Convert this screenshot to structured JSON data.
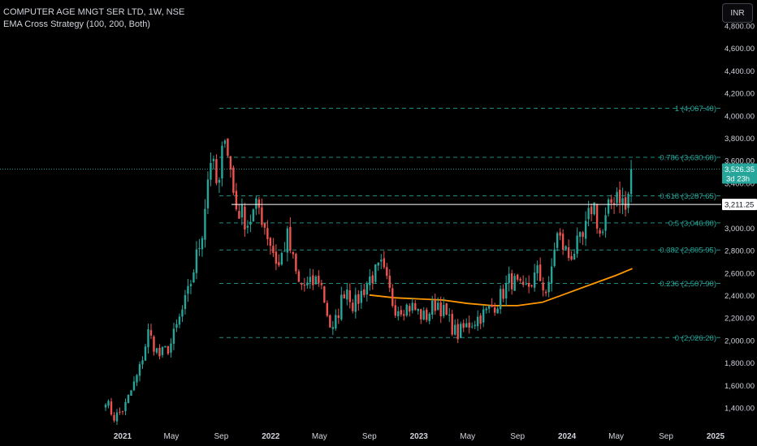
{
  "header": {
    "title": "COMPUTER AGE MNGT SER LTD, 1W, NSE",
    "strategy": "EMA Cross Strategy (100, 200, Both)"
  },
  "currency_button": {
    "label": "INR"
  },
  "colors": {
    "up": "#26a69a",
    "down": "#ef5350",
    "fib": "#26a69a",
    "ema": "#ff9800",
    "axis_text": "#d1d4dc",
    "reference_line": "#ffffff",
    "last_price_badge": "#26a69a"
  },
  "chart_data": {
    "type": "candlestick",
    "y_axis": {
      "ylim": [
        1260,
        4900
      ],
      "ticks": [
        "1,400.00",
        "1,600.00",
        "1,800.00",
        "2,000.00",
        "2,200.00",
        "2,400.00",
        "2,600.00",
        "2,800.00",
        "3,000.00",
        "3,200.00",
        "3,400.00",
        "3,600.00",
        "3,800.00",
        "4,000.00",
        "4,200.00",
        "4,400.00",
        "4,600.00",
        "4,800.00"
      ],
      "tick_values": [
        1400,
        1600,
        1800,
        2000,
        2200,
        2400,
        2600,
        2800,
        3000,
        3200,
        3400,
        3600,
        3800,
        4000,
        4200,
        4400,
        4600,
        4800
      ]
    },
    "x_axis": {
      "tick_labels": [
        "2021",
        "May",
        "Sep",
        "2022",
        "May",
        "Sep",
        "2023",
        "May",
        "Sep",
        "2024",
        "May",
        "Sep",
        "2025"
      ],
      "tick_dates": [
        "2021-01-01",
        "2021-05-01",
        "2021-09-01",
        "2022-01-01",
        "2022-05-01",
        "2022-09-01",
        "2023-01-01",
        "2023-05-01",
        "2023-09-01",
        "2024-01-01",
        "2024-05-01",
        "2024-09-01",
        "2025-01-01"
      ]
    },
    "fib_levels": [
      {
        "label": "1 (4,067.40)",
        "value": 4067.4
      },
      {
        "label": "0.786 (3,630.60)",
        "value": 3630.6
      },
      {
        "label": "0.618 (3,287.65)",
        "value": 3287.65
      },
      {
        "label": "0.5 (3,046.80)",
        "value": 3046.8
      },
      {
        "label": "0.382 (2,805.95)",
        "value": 2805.95
      },
      {
        "label": "0.236 (2,507.90)",
        "value": 2507.9
      },
      {
        "label": "0 (2,026.20)",
        "value": 2026.2
      }
    ],
    "last_price": {
      "value": 3526.35,
      "label": "3,526.35",
      "countdown": "3d 23h"
    },
    "reference_level": {
      "value": 3211.25,
      "label": "3,211.25"
    },
    "anchor_points": [
      {
        "date": "2020-11-20",
        "close": 1480
      },
      {
        "date": "2020-12-10",
        "close": 1310
      },
      {
        "date": "2021-01-05",
        "close": 1400
      },
      {
        "date": "2021-02-10",
        "close": 1720
      },
      {
        "date": "2021-03-05",
        "close": 2070
      },
      {
        "date": "2021-04-01",
        "close": 1860
      },
      {
        "date": "2021-04-28",
        "close": 1950
      },
      {
        "date": "2021-06-10",
        "close": 2400
      },
      {
        "date": "2021-07-15",
        "close": 2950
      },
      {
        "date": "2021-08-05",
        "close": 3650
      },
      {
        "date": "2021-08-25",
        "close": 3300
      },
      {
        "date": "2021-09-10",
        "close": 3900
      },
      {
        "date": "2021-10-05",
        "close": 3200
      },
      {
        "date": "2021-11-05",
        "close": 3050
      },
      {
        "date": "2021-12-01",
        "close": 3200
      },
      {
        "date": "2022-01-20",
        "close": 2650
      },
      {
        "date": "2022-02-10",
        "close": 2930
      },
      {
        "date": "2022-03-10",
        "close": 2500
      },
      {
        "date": "2022-04-05",
        "close": 2480
      },
      {
        "date": "2022-05-01",
        "close": 2560
      },
      {
        "date": "2022-06-01",
        "close": 2050
      },
      {
        "date": "2022-07-05",
        "close": 2500
      },
      {
        "date": "2022-07-25",
        "close": 2300
      },
      {
        "date": "2022-09-01",
        "close": 2550
      },
      {
        "date": "2022-10-01",
        "close": 2650
      },
      {
        "date": "2022-11-01",
        "close": 2300
      },
      {
        "date": "2022-12-15",
        "close": 2300
      },
      {
        "date": "2023-01-15",
        "close": 2200
      },
      {
        "date": "2023-02-15",
        "close": 2350
      },
      {
        "date": "2023-04-05",
        "close": 2050
      },
      {
        "date": "2023-05-05",
        "close": 2150
      },
      {
        "date": "2023-06-15",
        "close": 2250
      },
      {
        "date": "2023-07-15",
        "close": 2350
      },
      {
        "date": "2023-08-15",
        "close": 2550
      },
      {
        "date": "2023-09-15",
        "close": 2420
      },
      {
        "date": "2023-10-20",
        "close": 2600
      },
      {
        "date": "2023-11-15",
        "close": 2400
      },
      {
        "date": "2023-12-05",
        "close": 2950
      },
      {
        "date": "2024-01-05",
        "close": 2750
      },
      {
        "date": "2024-02-10",
        "close": 2900
      },
      {
        "date": "2024-03-05",
        "close": 3250
      },
      {
        "date": "2024-03-25",
        "close": 2900
      },
      {
        "date": "2024-04-15",
        "close": 3200
      },
      {
        "date": "2024-05-05",
        "close": 3350
      },
      {
        "date": "2024-05-25",
        "close": 3150
      },
      {
        "date": "2024-06-10",
        "close": 3526.35
      }
    ],
    "ema": [
      {
        "date": "2022-09-01",
        "value": 2405
      },
      {
        "date": "2022-11-01",
        "value": 2380
      },
      {
        "date": "2023-01-01",
        "value": 2370
      },
      {
        "date": "2023-03-01",
        "value": 2360
      },
      {
        "date": "2023-05-01",
        "value": 2330
      },
      {
        "date": "2023-07-01",
        "value": 2310
      },
      {
        "date": "2023-09-01",
        "value": 2310
      },
      {
        "date": "2023-11-01",
        "value": 2340
      },
      {
        "date": "2024-01-01",
        "value": 2420
      },
      {
        "date": "2024-03-01",
        "value": 2500
      },
      {
        "date": "2024-05-01",
        "value": 2580
      },
      {
        "date": "2024-06-10",
        "value": 2640
      }
    ]
  }
}
